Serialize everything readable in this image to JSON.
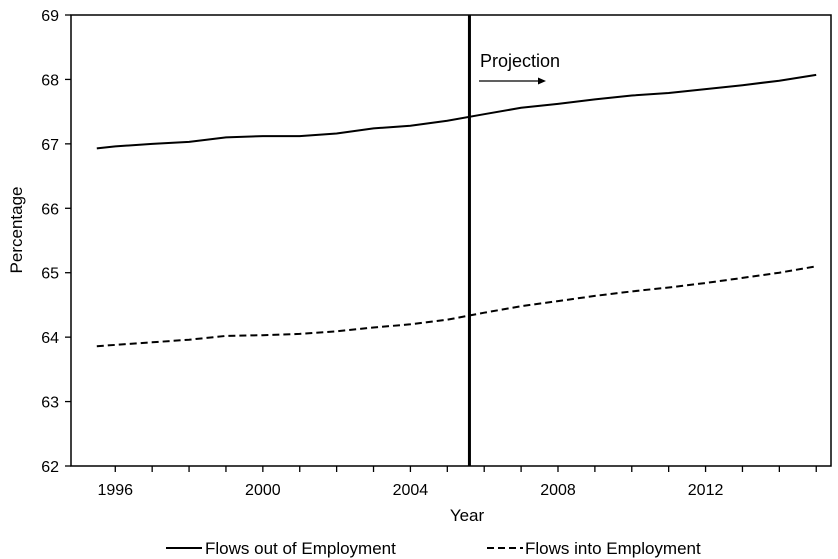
{
  "chart_data": {
    "type": "line",
    "xlabel": "Year",
    "ylabel": "Percentage",
    "xlim": [
      1994.8,
      2015.4
    ],
    "ylim": [
      62,
      69
    ],
    "x_tick_labels": [
      "1996",
      "2000",
      "2004",
      "2008",
      "2012"
    ],
    "x_tick_values": [
      1996,
      2000,
      2004,
      2008,
      2012
    ],
    "y_ticks": [
      62,
      63,
      64,
      65,
      66,
      67,
      68,
      69
    ],
    "grid": false,
    "legend_position": "bottom",
    "projection_start_year": 2005.6,
    "annotation": "Projection",
    "series": [
      {
        "name": "Flows out of Employment",
        "style": "solid",
        "x": [
          1995.5,
          1996,
          1997,
          1998,
          1999,
          2000,
          2001,
          2002,
          2003,
          2004,
          2005,
          2006,
          2007,
          2008,
          2009,
          2010,
          2011,
          2012,
          2013,
          2014,
          2015
        ],
        "values": [
          66.93,
          66.96,
          67.0,
          67.03,
          67.1,
          67.12,
          67.12,
          67.16,
          67.24,
          67.28,
          67.36,
          67.46,
          67.56,
          67.62,
          67.69,
          67.75,
          67.79,
          67.85,
          67.91,
          67.98,
          68.07
        ]
      },
      {
        "name": "Flows into Employment",
        "style": "dashed",
        "x": [
          1995.5,
          1996,
          1997,
          1998,
          1999,
          2000,
          2001,
          2002,
          2003,
          2004,
          2005,
          2006,
          2007,
          2008,
          2009,
          2010,
          2011,
          2012,
          2013,
          2014,
          2015
        ],
        "values": [
          63.86,
          63.88,
          63.92,
          63.96,
          64.02,
          64.03,
          64.05,
          64.09,
          64.15,
          64.2,
          64.27,
          64.38,
          64.48,
          64.56,
          64.64,
          64.71,
          64.77,
          64.84,
          64.92,
          65.0,
          65.1
        ]
      }
    ]
  },
  "colors": {
    "line": "#000000",
    "axis": "#000000",
    "background": "#ffffff"
  }
}
